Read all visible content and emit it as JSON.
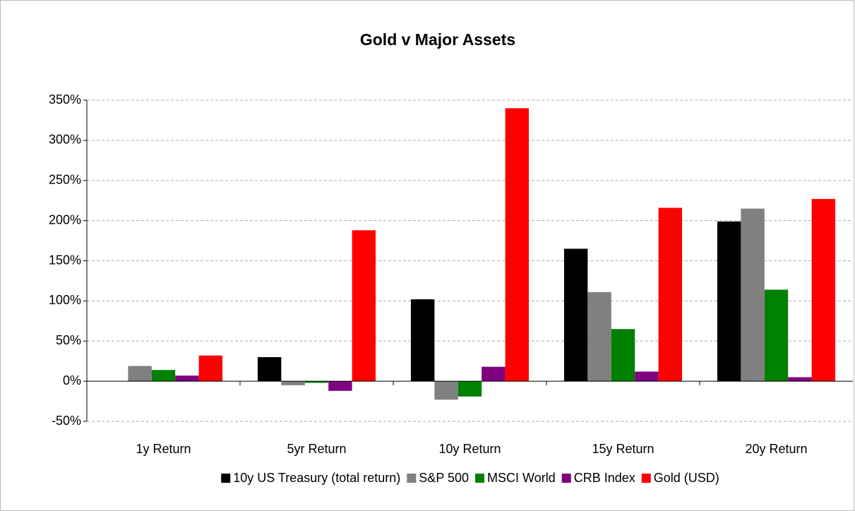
{
  "chart_data": {
    "type": "bar",
    "title": "Gold v Major Assets",
    "categories": [
      "1y Return",
      "5yr Return",
      "10y Return",
      "15y Return",
      "20y Return"
    ],
    "series": [
      {
        "name": "10y US Treasury (total return)",
        "color": "#000000",
        "values": [
          0,
          30,
          102,
          165,
          199
        ]
      },
      {
        "name": "S&P 500",
        "color": "#808080",
        "values": [
          19,
          -5,
          -23,
          111,
          215
        ]
      },
      {
        "name": "MSCI World",
        "color": "#008000",
        "values": [
          14,
          -2,
          -19,
          65,
          114
        ]
      },
      {
        "name": "CRB Index",
        "color": "#800080",
        "values": [
          7,
          -12,
          18,
          12,
          5
        ]
      },
      {
        "name": "Gold (USD)",
        "color": "#ff0000",
        "values": [
          32,
          188,
          340,
          216,
          227
        ]
      }
    ],
    "ylim": [
      -50,
      350
    ],
    "yticks": [
      {
        "value": -50,
        "label": "-50%"
      },
      {
        "value": 0,
        "label": "0%"
      },
      {
        "value": 50,
        "label": "50%"
      },
      {
        "value": 100,
        "label": "100%"
      },
      {
        "value": 150,
        "label": "150%"
      },
      {
        "value": 200,
        "label": "200%"
      },
      {
        "value": 250,
        "label": "250%"
      },
      {
        "value": 300,
        "label": "300%"
      },
      {
        "value": 350,
        "label": "350%"
      }
    ],
    "grid": true,
    "legend": "bottom"
  }
}
